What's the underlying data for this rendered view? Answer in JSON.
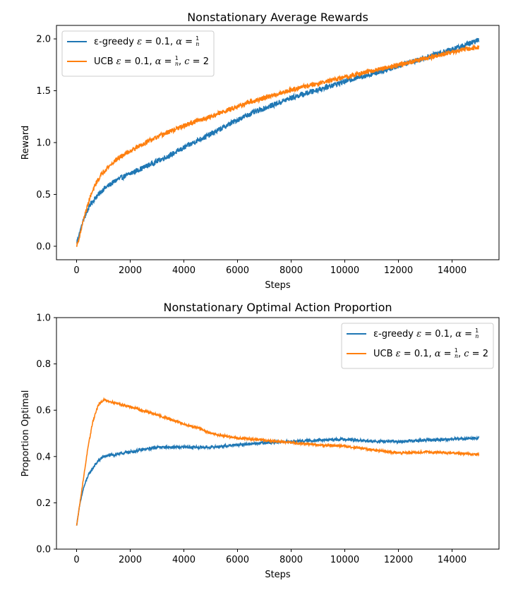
{
  "chart_data": [
    {
      "type": "line",
      "title": "Nonstationary Average Rewards",
      "xlabel": "Steps",
      "ylabel": "Reward",
      "xlim": [
        -750,
        15750
      ],
      "ylim": [
        -0.13,
        2.13
      ],
      "xticks": [
        0,
        2000,
        4000,
        6000,
        8000,
        10000,
        12000,
        14000
      ],
      "yticks": [
        0.0,
        0.5,
        1.0,
        1.5,
        2.0
      ],
      "ytick_labels": [
        "0.0",
        "0.5",
        "1.0",
        "1.5",
        "2.0"
      ],
      "legend_position": "top-left",
      "series": [
        {
          "name": "ε-greedy ε = 0.1, α = 1/n",
          "color": "#1f77b4",
          "noise": 0.025,
          "x": [
            0,
            100,
            250,
            500,
            750,
            1000,
            1500,
            2000,
            2500,
            3000,
            3500,
            4000,
            4500,
            5000,
            5500,
            6000,
            6500,
            7000,
            7500,
            8000,
            8500,
            9000,
            9500,
            10000,
            10500,
            11000,
            11500,
            12000,
            12500,
            13000,
            13500,
            14000,
            14500,
            15000
          ],
          "y": [
            0.03,
            0.12,
            0.25,
            0.4,
            0.48,
            0.55,
            0.64,
            0.7,
            0.76,
            0.82,
            0.88,
            0.95,
            1.02,
            1.08,
            1.15,
            1.22,
            1.28,
            1.33,
            1.38,
            1.43,
            1.47,
            1.51,
            1.55,
            1.59,
            1.63,
            1.66,
            1.7,
            1.74,
            1.78,
            1.82,
            1.86,
            1.9,
            1.94,
            1.99
          ]
        },
        {
          "name": "UCB ε = 0.1, α = 1/n, c = 2",
          "color": "#ff7f0e",
          "noise": 0.022,
          "x": [
            0,
            100,
            250,
            500,
            750,
            1000,
            1500,
            2000,
            2500,
            3000,
            3500,
            4000,
            4500,
            5000,
            5500,
            6000,
            6500,
            7000,
            7500,
            8000,
            8500,
            9000,
            9500,
            10000,
            10500,
            11000,
            11500,
            12000,
            12500,
            13000,
            13500,
            14000,
            14500,
            15000
          ],
          "y": [
            0.0,
            0.08,
            0.25,
            0.47,
            0.62,
            0.72,
            0.84,
            0.92,
            0.99,
            1.05,
            1.11,
            1.16,
            1.21,
            1.25,
            1.3,
            1.35,
            1.39,
            1.43,
            1.47,
            1.51,
            1.54,
            1.57,
            1.6,
            1.63,
            1.66,
            1.69,
            1.72,
            1.75,
            1.78,
            1.81,
            1.84,
            1.87,
            1.9,
            1.92
          ]
        }
      ]
    },
    {
      "type": "line",
      "title": "Nonstationary Optimal Action Proportion",
      "xlabel": "Steps",
      "ylabel": "Proportion Optimal",
      "xlim": [
        -750,
        15750
      ],
      "ylim": [
        0.0,
        1.0
      ],
      "xticks": [
        0,
        2000,
        4000,
        6000,
        8000,
        10000,
        12000,
        14000
      ],
      "yticks": [
        0.0,
        0.2,
        0.4,
        0.6,
        0.8,
        1.0
      ],
      "ytick_labels": [
        "0.0",
        "0.2",
        "0.4",
        "0.6",
        "0.8",
        "1.0"
      ],
      "legend_position": "top-right",
      "series": [
        {
          "name": "ε-greedy ε = 0.1, α = 1/n",
          "color": "#1f77b4",
          "noise": 0.006,
          "x": [
            0,
            100,
            250,
            400,
            600,
            800,
            1000,
            1500,
            2000,
            3000,
            4000,
            5000,
            6000,
            7000,
            8000,
            9000,
            10000,
            11000,
            12000,
            13000,
            14000,
            15000
          ],
          "y": [
            0.1,
            0.18,
            0.26,
            0.31,
            0.35,
            0.38,
            0.4,
            0.41,
            0.42,
            0.44,
            0.44,
            0.44,
            0.45,
            0.46,
            0.465,
            0.47,
            0.475,
            0.465,
            0.465,
            0.47,
            0.475,
            0.48
          ]
        },
        {
          "name": "UCB ε = 0.1, α = 1/n, c = 2",
          "color": "#ff7f0e",
          "noise": 0.005,
          "x": [
            0,
            100,
            250,
            400,
            600,
            800,
            1000,
            1500,
            2000,
            3000,
            4000,
            4500,
            5000,
            6000,
            7000,
            8000,
            9000,
            10000,
            11000,
            12000,
            13000,
            14000,
            15000
          ],
          "y": [
            0.1,
            0.18,
            0.3,
            0.42,
            0.55,
            0.62,
            0.645,
            0.63,
            0.615,
            0.58,
            0.54,
            0.525,
            0.5,
            0.48,
            0.47,
            0.46,
            0.45,
            0.445,
            0.43,
            0.415,
            0.42,
            0.415,
            0.41
          ]
        }
      ]
    }
  ],
  "legend_parts": {
    "eps_greedy_prefix": "ε-greedy ",
    "ucb_prefix": "UCB ",
    "eps_sym": "ε",
    "alpha_sym": "α",
    "c_sym": "c",
    "eq": " = ",
    "eps_val": "0.1",
    "comma": ", ",
    "frac_num": "1",
    "frac_den": "n",
    "c_val": "2"
  }
}
